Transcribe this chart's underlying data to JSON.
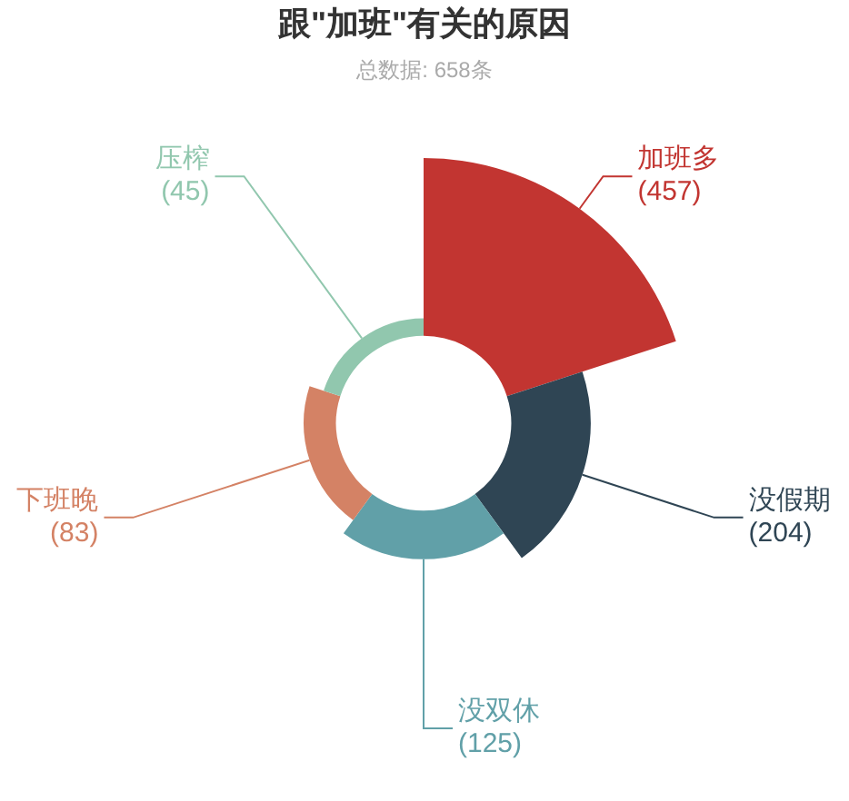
{
  "chart_data": {
    "type": "other",
    "title": "跟\"加班\"有关的原因",
    "subtitle": "总数据: 658条",
    "categories": [
      "加班多",
      "没假期",
      "没双休",
      "下班晚",
      "压榨"
    ],
    "values": [
      457,
      204,
      125,
      83,
      45
    ],
    "value_labels": [
      "(457)",
      "(204)",
      "(125)",
      "(83)",
      "(45)"
    ],
    "colors": [
      "#c23531",
      "#2f4554",
      "#61a0a8",
      "#d48265",
      "#91c7ae"
    ]
  }
}
